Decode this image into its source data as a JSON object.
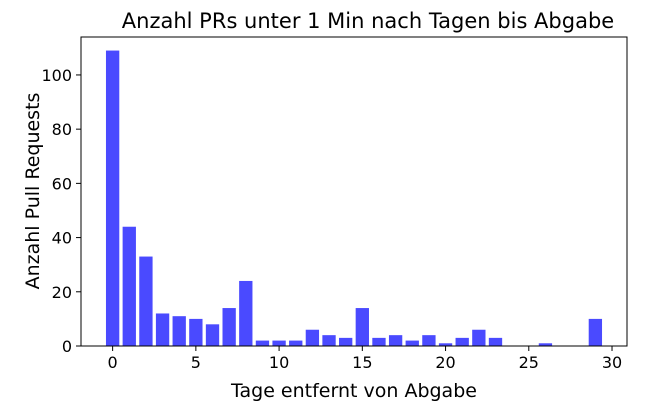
{
  "chart_data": {
    "type": "bar",
    "title": "Anzahl PRs unter 1 Min nach Tagen bis Abgabe",
    "xlabel": "Tage entfernt von Abgabe",
    "ylabel": "Anzahl Pull Requests",
    "x": [
      0,
      1,
      2,
      3,
      4,
      5,
      6,
      7,
      8,
      9,
      10,
      11,
      12,
      13,
      14,
      15,
      16,
      17,
      18,
      19,
      20,
      21,
      22,
      23,
      26,
      29
    ],
    "values": [
      109,
      44,
      33,
      12,
      11,
      10,
      8,
      14,
      24,
      2,
      2,
      2,
      6,
      4,
      3,
      14,
      3,
      4,
      2,
      4,
      1,
      3,
      6,
      3,
      1,
      10
    ],
    "xlim": [
      -1.9,
      30.9
    ],
    "ylim": [
      0,
      114
    ],
    "xticks": [
      "0",
      "5",
      "10",
      "15",
      "20",
      "25",
      "30"
    ],
    "yticks": [
      "0",
      "20",
      "40",
      "60",
      "80",
      "100"
    ],
    "bar_color": "#4a4aff",
    "grid": false,
    "legend": "none"
  }
}
